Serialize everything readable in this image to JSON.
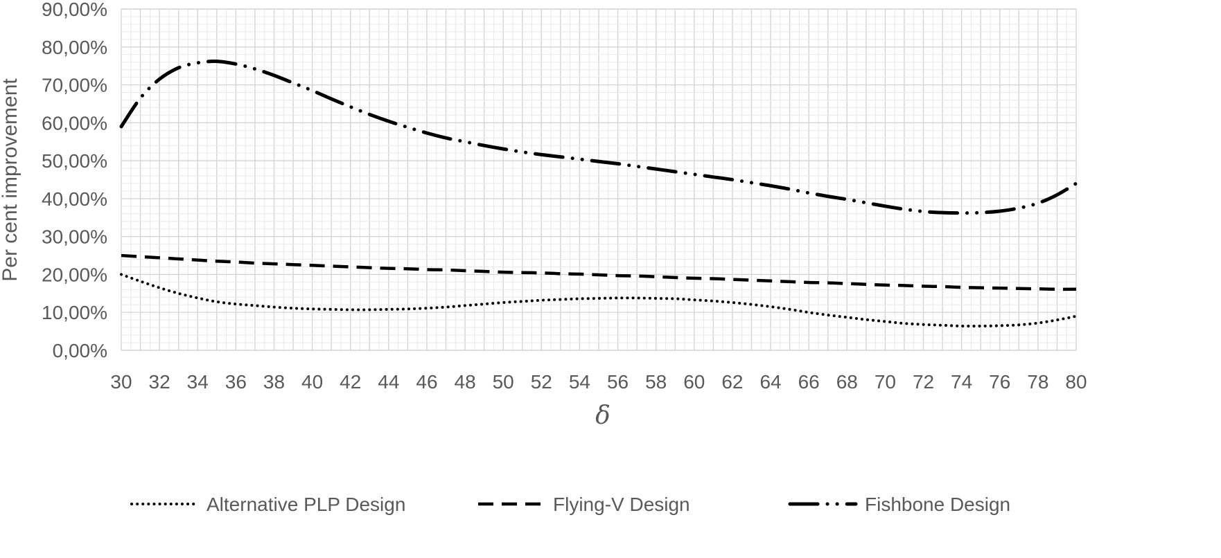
{
  "chart_data": {
    "type": "line",
    "x": [
      30,
      31,
      32,
      33,
      34,
      35,
      36,
      37,
      38,
      39,
      40,
      41,
      42,
      43,
      44,
      45,
      46,
      47,
      48,
      49,
      50,
      51,
      52,
      53,
      54,
      55,
      56,
      57,
      58,
      59,
      60,
      61,
      62,
      63,
      64,
      65,
      66,
      67,
      68,
      69,
      70,
      71,
      72,
      73,
      74,
      75,
      76,
      77,
      78,
      79,
      80
    ],
    "x_ticks": [
      "30",
      "32",
      "34",
      "36",
      "38",
      "40",
      "42",
      "44",
      "46",
      "48",
      "50",
      "52",
      "54",
      "56",
      "58",
      "60",
      "62",
      "64",
      "66",
      "68",
      "70",
      "72",
      "74",
      "76",
      "78",
      "80"
    ],
    "y_ticks": [
      "0,00%",
      "10,00%",
      "20,00%",
      "30,00%",
      "40,00%",
      "50,00%",
      "60,00%",
      "70,00%",
      "80,00%",
      "90,00%"
    ],
    "xlim": [
      30,
      80
    ],
    "ylim": [
      0,
      90
    ],
    "xlabel": "δ",
    "ylabel": "Per cent improvement",
    "grid": "major and minor",
    "legend_position": "bottom",
    "series": [
      {
        "name": "Alternative PLP Design",
        "style": "dotted",
        "values": [
          20.0,
          18.2,
          16.5,
          15.0,
          13.8,
          12.8,
          12.2,
          11.8,
          11.4,
          11.1,
          10.9,
          10.8,
          10.7,
          10.7,
          10.8,
          10.9,
          11.1,
          11.4,
          11.8,
          12.2,
          12.6,
          12.9,
          13.2,
          13.4,
          13.6,
          13.7,
          13.8,
          13.8,
          13.7,
          13.6,
          13.3,
          13.0,
          12.6,
          12.1,
          11.5,
          10.8,
          10.0,
          9.3,
          8.7,
          8.1,
          7.6,
          7.1,
          6.8,
          6.6,
          6.4,
          6.4,
          6.5,
          6.7,
          7.2,
          8.0,
          9.0
        ]
      },
      {
        "name": "Flying-V Design",
        "style": "dashed",
        "values": [
          25.0,
          24.7,
          24.4,
          24.1,
          23.8,
          23.5,
          23.3,
          23.0,
          22.8,
          22.6,
          22.4,
          22.2,
          22.0,
          21.8,
          21.6,
          21.5,
          21.3,
          21.2,
          21.0,
          20.8,
          20.6,
          20.5,
          20.4,
          20.2,
          20.1,
          19.9,
          19.7,
          19.6,
          19.4,
          19.2,
          19.0,
          18.9,
          18.7,
          18.5,
          18.3,
          18.1,
          17.9,
          17.8,
          17.6,
          17.4,
          17.2,
          17.1,
          16.9,
          16.8,
          16.6,
          16.5,
          16.4,
          16.3,
          16.2,
          16.1,
          16.1
        ]
      },
      {
        "name": "Fishbone Design",
        "style": "dash-dot-dot",
        "values": [
          59.0,
          66.5,
          71.5,
          74.5,
          75.8,
          76.2,
          75.5,
          74.2,
          72.5,
          70.5,
          68.5,
          66.3,
          64.2,
          62.2,
          60.4,
          58.8,
          57.3,
          56.0,
          55.0,
          54.0,
          53.1,
          52.3,
          51.6,
          51.0,
          50.4,
          49.8,
          49.2,
          48.5,
          47.8,
          47.1,
          46.4,
          45.7,
          45.0,
          44.2,
          43.4,
          42.5,
          41.5,
          40.6,
          39.8,
          38.9,
          38.0,
          37.2,
          36.6,
          36.3,
          36.2,
          36.3,
          36.7,
          37.5,
          38.8,
          41.0,
          44.0
        ]
      }
    ]
  }
}
